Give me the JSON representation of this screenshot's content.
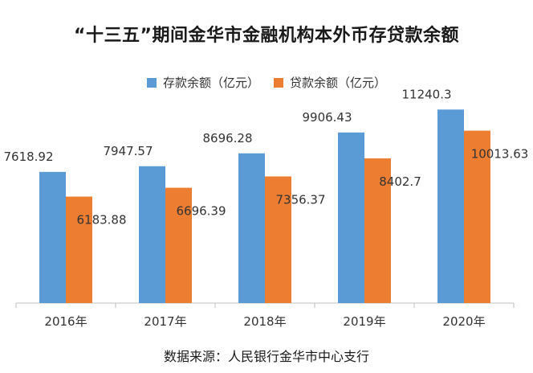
{
  "chart_data": {
    "type": "bar",
    "title": "“十三五”期间金华市金融机构本外币存贷款余额",
    "categories": [
      "2016年",
      "2017年",
      "2018年",
      "2019年",
      "2020年"
    ],
    "series": [
      {
        "name": "存款余额（亿元）",
        "color": "#5B9BD5",
        "values": [
          7618.92,
          7947.57,
          8696.28,
          9906.43,
          11240.3
        ],
        "labels": [
          "7618.92",
          "7947.57",
          "8696.28",
          "9906.43",
          "11240.3"
        ]
      },
      {
        "name": "贷款余额（亿元）",
        "color": "#ED7D31",
        "values": [
          6183.88,
          6696.39,
          7356.37,
          8402.7,
          10013.63
        ],
        "labels": [
          "6183.88",
          "6696.39",
          "7356.37",
          "8402.7",
          "10013.63"
        ]
      }
    ],
    "ylim": [
      0,
      12000
    ],
    "xlabel": "",
    "ylabel": "",
    "grid": false,
    "legend_position": "top"
  },
  "source": "数据来源：人民银行金华市中心支行"
}
